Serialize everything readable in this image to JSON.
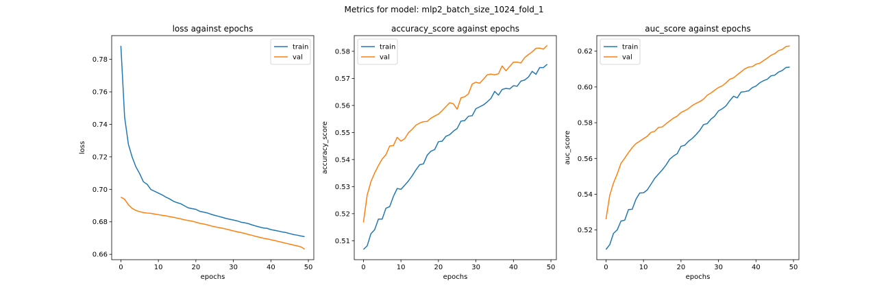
{
  "figure": {
    "suptitle": "Metrics for model: mlp2_batch_size_1024_fold_1"
  },
  "colors": {
    "train": "#1f77b4",
    "val": "#ff7f0e"
  },
  "chart_data": [
    {
      "type": "line",
      "title": "loss against epochs",
      "xlabel": "epochs",
      "ylabel": "loss",
      "xlim": [
        -2.45,
        51.45
      ],
      "ylim": [
        0.6567,
        0.7946
      ],
      "xticks": [
        0,
        10,
        20,
        30,
        40,
        50
      ],
      "yticks": [
        0.66,
        0.68,
        0.7,
        0.72,
        0.74,
        0.76,
        0.78
      ],
      "legend": "upper right",
      "grid": false,
      "series": [
        {
          "name": "train",
          "color": "#1f77b4",
          "values": [
            0.7883,
            0.7444,
            0.7278,
            0.7199,
            0.7139,
            0.7097,
            0.7047,
            0.7031,
            0.6999,
            0.6988,
            0.6977,
            0.6966,
            0.6952,
            0.6941,
            0.6927,
            0.6918,
            0.6911,
            0.6898,
            0.6886,
            0.6881,
            0.6877,
            0.6865,
            0.686,
            0.6855,
            0.6847,
            0.684,
            0.6834,
            0.6828,
            0.6821,
            0.6816,
            0.6811,
            0.6806,
            0.6798,
            0.6794,
            0.6789,
            0.6781,
            0.6774,
            0.6768,
            0.6762,
            0.676,
            0.6752,
            0.6748,
            0.6743,
            0.6738,
            0.6734,
            0.6728,
            0.6722,
            0.6718,
            0.6713,
            0.6709
          ]
        },
        {
          "name": "val",
          "color": "#ff7f0e",
          "values": [
            0.6952,
            0.6939,
            0.6905,
            0.6883,
            0.687,
            0.6863,
            0.6857,
            0.6854,
            0.6852,
            0.6848,
            0.6844,
            0.684,
            0.6837,
            0.6832,
            0.6828,
            0.6823,
            0.6818,
            0.6812,
            0.6808,
            0.6804,
            0.6798,
            0.6791,
            0.6787,
            0.6782,
            0.6775,
            0.677,
            0.6765,
            0.6761,
            0.6756,
            0.675,
            0.6744,
            0.6739,
            0.6734,
            0.6729,
            0.6722,
            0.6717,
            0.671,
            0.6705,
            0.6699,
            0.6695,
            0.669,
            0.6685,
            0.6679,
            0.6674,
            0.6668,
            0.6663,
            0.6657,
            0.6652,
            0.6646,
            0.6632
          ]
        }
      ]
    },
    {
      "type": "line",
      "title": "accuracy_score against epochs",
      "xlabel": "epochs",
      "ylabel": "accuracy_score",
      "xlim": [
        -2.45,
        51.45
      ],
      "ylim": [
        0.503,
        0.5858
      ],
      "xticks": [
        0,
        10,
        20,
        30,
        40,
        50
      ],
      "yticks": [
        0.51,
        0.52,
        0.53,
        0.54,
        0.55,
        0.56,
        0.57,
        0.58
      ],
      "legend": "upper left",
      "grid": false,
      "series": [
        {
          "name": "train",
          "color": "#1f77b4",
          "values": [
            0.5068,
            0.5081,
            0.5126,
            0.5141,
            0.518,
            0.518,
            0.522,
            0.5226,
            0.5264,
            0.5293,
            0.529,
            0.5305,
            0.5321,
            0.534,
            0.5362,
            0.5381,
            0.5384,
            0.5416,
            0.5431,
            0.5437,
            0.5466,
            0.5468,
            0.5486,
            0.5492,
            0.5505,
            0.5515,
            0.5542,
            0.5544,
            0.556,
            0.5562,
            0.5588,
            0.5595,
            0.5602,
            0.5613,
            0.5626,
            0.5652,
            0.5638,
            0.5659,
            0.5663,
            0.5661,
            0.5673,
            0.5671,
            0.569,
            0.5694,
            0.5705,
            0.5726,
            0.5715,
            0.574,
            0.574,
            0.5752
          ]
        },
        {
          "name": "val",
          "color": "#ff7f0e",
          "values": [
            0.5168,
            0.5269,
            0.5318,
            0.5351,
            0.5378,
            0.5402,
            0.5418,
            0.545,
            0.5452,
            0.5482,
            0.5468,
            0.5477,
            0.5499,
            0.5512,
            0.5527,
            0.5535,
            0.554,
            0.5541,
            0.5553,
            0.5561,
            0.5568,
            0.5581,
            0.5596,
            0.561,
            0.5606,
            0.5586,
            0.5628,
            0.5632,
            0.5643,
            0.5679,
            0.5686,
            0.5682,
            0.5697,
            0.5713,
            0.5716,
            0.5713,
            0.5717,
            0.5746,
            0.5728,
            0.5744,
            0.576,
            0.576,
            0.5757,
            0.5777,
            0.5788,
            0.5798,
            0.5811,
            0.5812,
            0.5808,
            0.5822
          ]
        }
      ]
    },
    {
      "type": "line",
      "title": "auc_score against epochs",
      "xlabel": "epochs",
      "ylabel": "auc_score",
      "xlim": [
        -2.45,
        51.45
      ],
      "ylim": [
        0.5034,
        0.6287
      ],
      "xticks": [
        0,
        10,
        20,
        30,
        40,
        50
      ],
      "yticks": [
        0.52,
        0.54,
        0.56,
        0.58,
        0.6,
        0.62
      ],
      "legend": "upper left",
      "grid": false,
      "series": [
        {
          "name": "train",
          "color": "#1f77b4",
          "values": [
            0.5091,
            0.5118,
            0.5181,
            0.5201,
            0.525,
            0.5255,
            0.5314,
            0.5316,
            0.5372,
            0.5407,
            0.5408,
            0.5424,
            0.5456,
            0.5489,
            0.5513,
            0.5536,
            0.5563,
            0.5596,
            0.5614,
            0.5627,
            0.5668,
            0.5674,
            0.5696,
            0.5712,
            0.5733,
            0.5757,
            0.5789,
            0.5795,
            0.582,
            0.5837,
            0.5866,
            0.5878,
            0.5894,
            0.5923,
            0.5948,
            0.5939,
            0.5971,
            0.5974,
            0.5978,
            0.5996,
            0.6005,
            0.6023,
            0.6035,
            0.6043,
            0.6062,
            0.6066,
            0.6083,
            0.6092,
            0.6109,
            0.6111
          ]
        },
        {
          "name": "val",
          "color": "#ff7f0e",
          "values": [
            0.526,
            0.5394,
            0.5463,
            0.5514,
            0.5573,
            0.5602,
            0.5633,
            0.5661,
            0.5683,
            0.5697,
            0.5711,
            0.5724,
            0.5746,
            0.5752,
            0.5774,
            0.5776,
            0.5794,
            0.581,
            0.5826,
            0.5837,
            0.5857,
            0.5867,
            0.5879,
            0.5896,
            0.5908,
            0.5918,
            0.5931,
            0.5954,
            0.5966,
            0.5982,
            0.5997,
            0.6006,
            0.6023,
            0.6043,
            0.6051,
            0.6068,
            0.6084,
            0.6101,
            0.6111,
            0.6113,
            0.6127,
            0.6133,
            0.6147,
            0.6161,
            0.6177,
            0.6186,
            0.6203,
            0.621,
            0.6226,
            0.6229
          ]
        }
      ]
    }
  ]
}
